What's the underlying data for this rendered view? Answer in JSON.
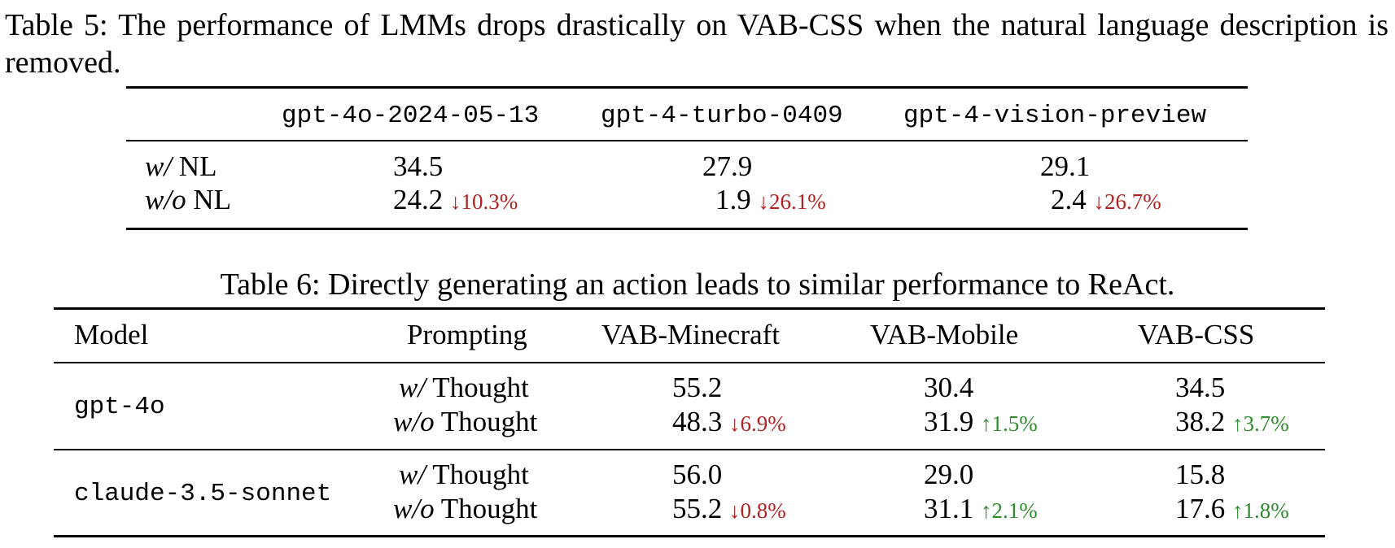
{
  "table5": {
    "caption": "Table 5: The performance of LMMs drops drastically on VAB-CSS when the natural language description is removed.",
    "headers": [
      "gpt-4o-2024-05-13",
      "gpt-4-turbo-0409",
      "gpt-4-vision-preview"
    ],
    "rows": [
      {
        "label_italic": "w/",
        "label_rest": " NL",
        "values": [
          "34.5",
          "27.9",
          "29.1"
        ],
        "deltas": [
          "",
          "",
          ""
        ]
      },
      {
        "label_italic": "w/o",
        "label_rest": " NL",
        "values": [
          "24.2",
          "1.9",
          "2.4"
        ],
        "deltas": [
          "↓10.3%",
          "↓26.1%",
          "↓26.7%"
        ]
      }
    ]
  },
  "table6": {
    "caption": "Table 6: Directly generating an action leads to similar performance to ReAct.",
    "headers": {
      "model": "Model",
      "prompting": "Prompting",
      "cols": [
        "VAB-Minecraft",
        "VAB-Mobile",
        "VAB-CSS"
      ]
    },
    "groups": [
      {
        "model": "gpt-4o",
        "rows": [
          {
            "p_italic": "w/",
            "p_rest": " Thought",
            "values": [
              "55.2",
              "30.4",
              "34.5"
            ],
            "deltas": [
              "",
              "",
              ""
            ]
          },
          {
            "p_italic": "w/o",
            "p_rest": " Thought",
            "values": [
              "48.3",
              "31.9",
              "38.2"
            ],
            "deltas": [
              "↓6.9%",
              "↑1.5%",
              "↑3.7%"
            ]
          }
        ]
      },
      {
        "model": "claude-3.5-sonnet",
        "rows": [
          {
            "p_italic": "w/",
            "p_rest": " Thought",
            "values": [
              "56.0",
              "29.0",
              "15.8"
            ],
            "deltas": [
              "",
              "",
              ""
            ]
          },
          {
            "p_italic": "w/o",
            "p_rest": " Thought",
            "values": [
              "55.2",
              "31.1",
              "17.6"
            ],
            "deltas": [
              "↓0.8%",
              "↑2.1%",
              "↑1.8%"
            ]
          }
        ]
      }
    ]
  },
  "colors": {
    "down": "#b22222",
    "up": "#2e8b2e"
  }
}
